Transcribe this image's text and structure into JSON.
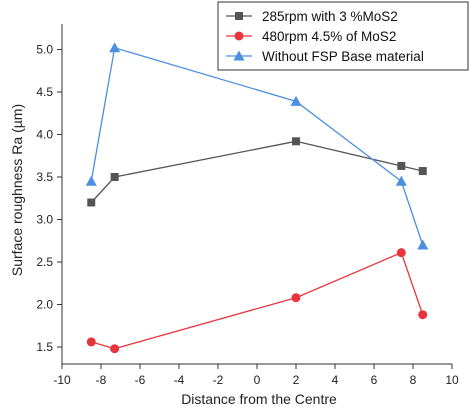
{
  "chart_data": {
    "type": "line",
    "title": "",
    "xlabel": "Distance from the Centre",
    "ylabel": "Surface roughness Ra (µm)",
    "xlim": [
      -10,
      10
    ],
    "ylim": [
      1.3,
      5.3
    ],
    "xticks": [
      -10,
      -8,
      -6,
      -4,
      -2,
      0,
      2,
      4,
      6,
      8,
      10
    ],
    "yticks": [
      1.5,
      2.0,
      2.5,
      3.0,
      3.5,
      4.0,
      4.5,
      5.0
    ],
    "ytick_labels": [
      "1.5",
      "2.0",
      "2.5",
      "3.0",
      "3.5",
      "4.0",
      "4.5",
      "5.0"
    ],
    "grid": false,
    "legend_position": "top-right",
    "series": [
      {
        "name": "285rpm with 3 %MoS2",
        "color": "#555555",
        "marker": "square",
        "x": [
          -8.5,
          -7.3,
          2,
          7.4,
          8.5
        ],
        "y": [
          3.2,
          3.5,
          3.92,
          3.63,
          3.57
        ]
      },
      {
        "name": "480rpm 4.5% of MoS2",
        "color": "#e8343c",
        "marker": "circle",
        "x": [
          -8.5,
          -7.3,
          2,
          7.4,
          8.5
        ],
        "y": [
          1.56,
          1.48,
          2.08,
          2.61,
          1.88
        ]
      },
      {
        "name": "Without FSP Base material",
        "color": "#4a8fe0",
        "marker": "triangle",
        "x": [
          -8.5,
          -7.3,
          2,
          7.4,
          8.5
        ],
        "y": [
          3.45,
          5.02,
          4.39,
          3.45,
          2.7
        ]
      }
    ]
  }
}
